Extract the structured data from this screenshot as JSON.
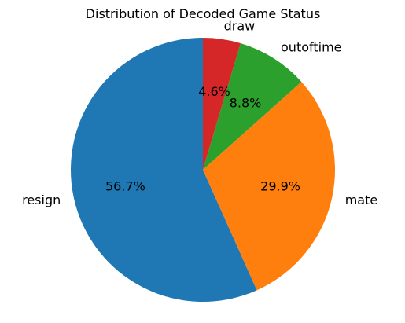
{
  "chart_data": {
    "type": "pie",
    "title": "Distribution of Decoded Game Status",
    "start_angle_deg": 90,
    "direction": "counterclockwise",
    "slices": [
      {
        "label": "resign",
        "value": 56.7,
        "pct_label": "56.7%",
        "color": "#1f77b4"
      },
      {
        "label": "mate",
        "value": 29.9,
        "pct_label": "29.9%",
        "color": "#ff7f0e"
      },
      {
        "label": "outoftime",
        "value": 8.8,
        "pct_label": "8.8%",
        "color": "#2ca02c"
      },
      {
        "label": "draw",
        "value": 4.6,
        "pct_label": "4.6%",
        "color": "#d62728"
      }
    ]
  }
}
